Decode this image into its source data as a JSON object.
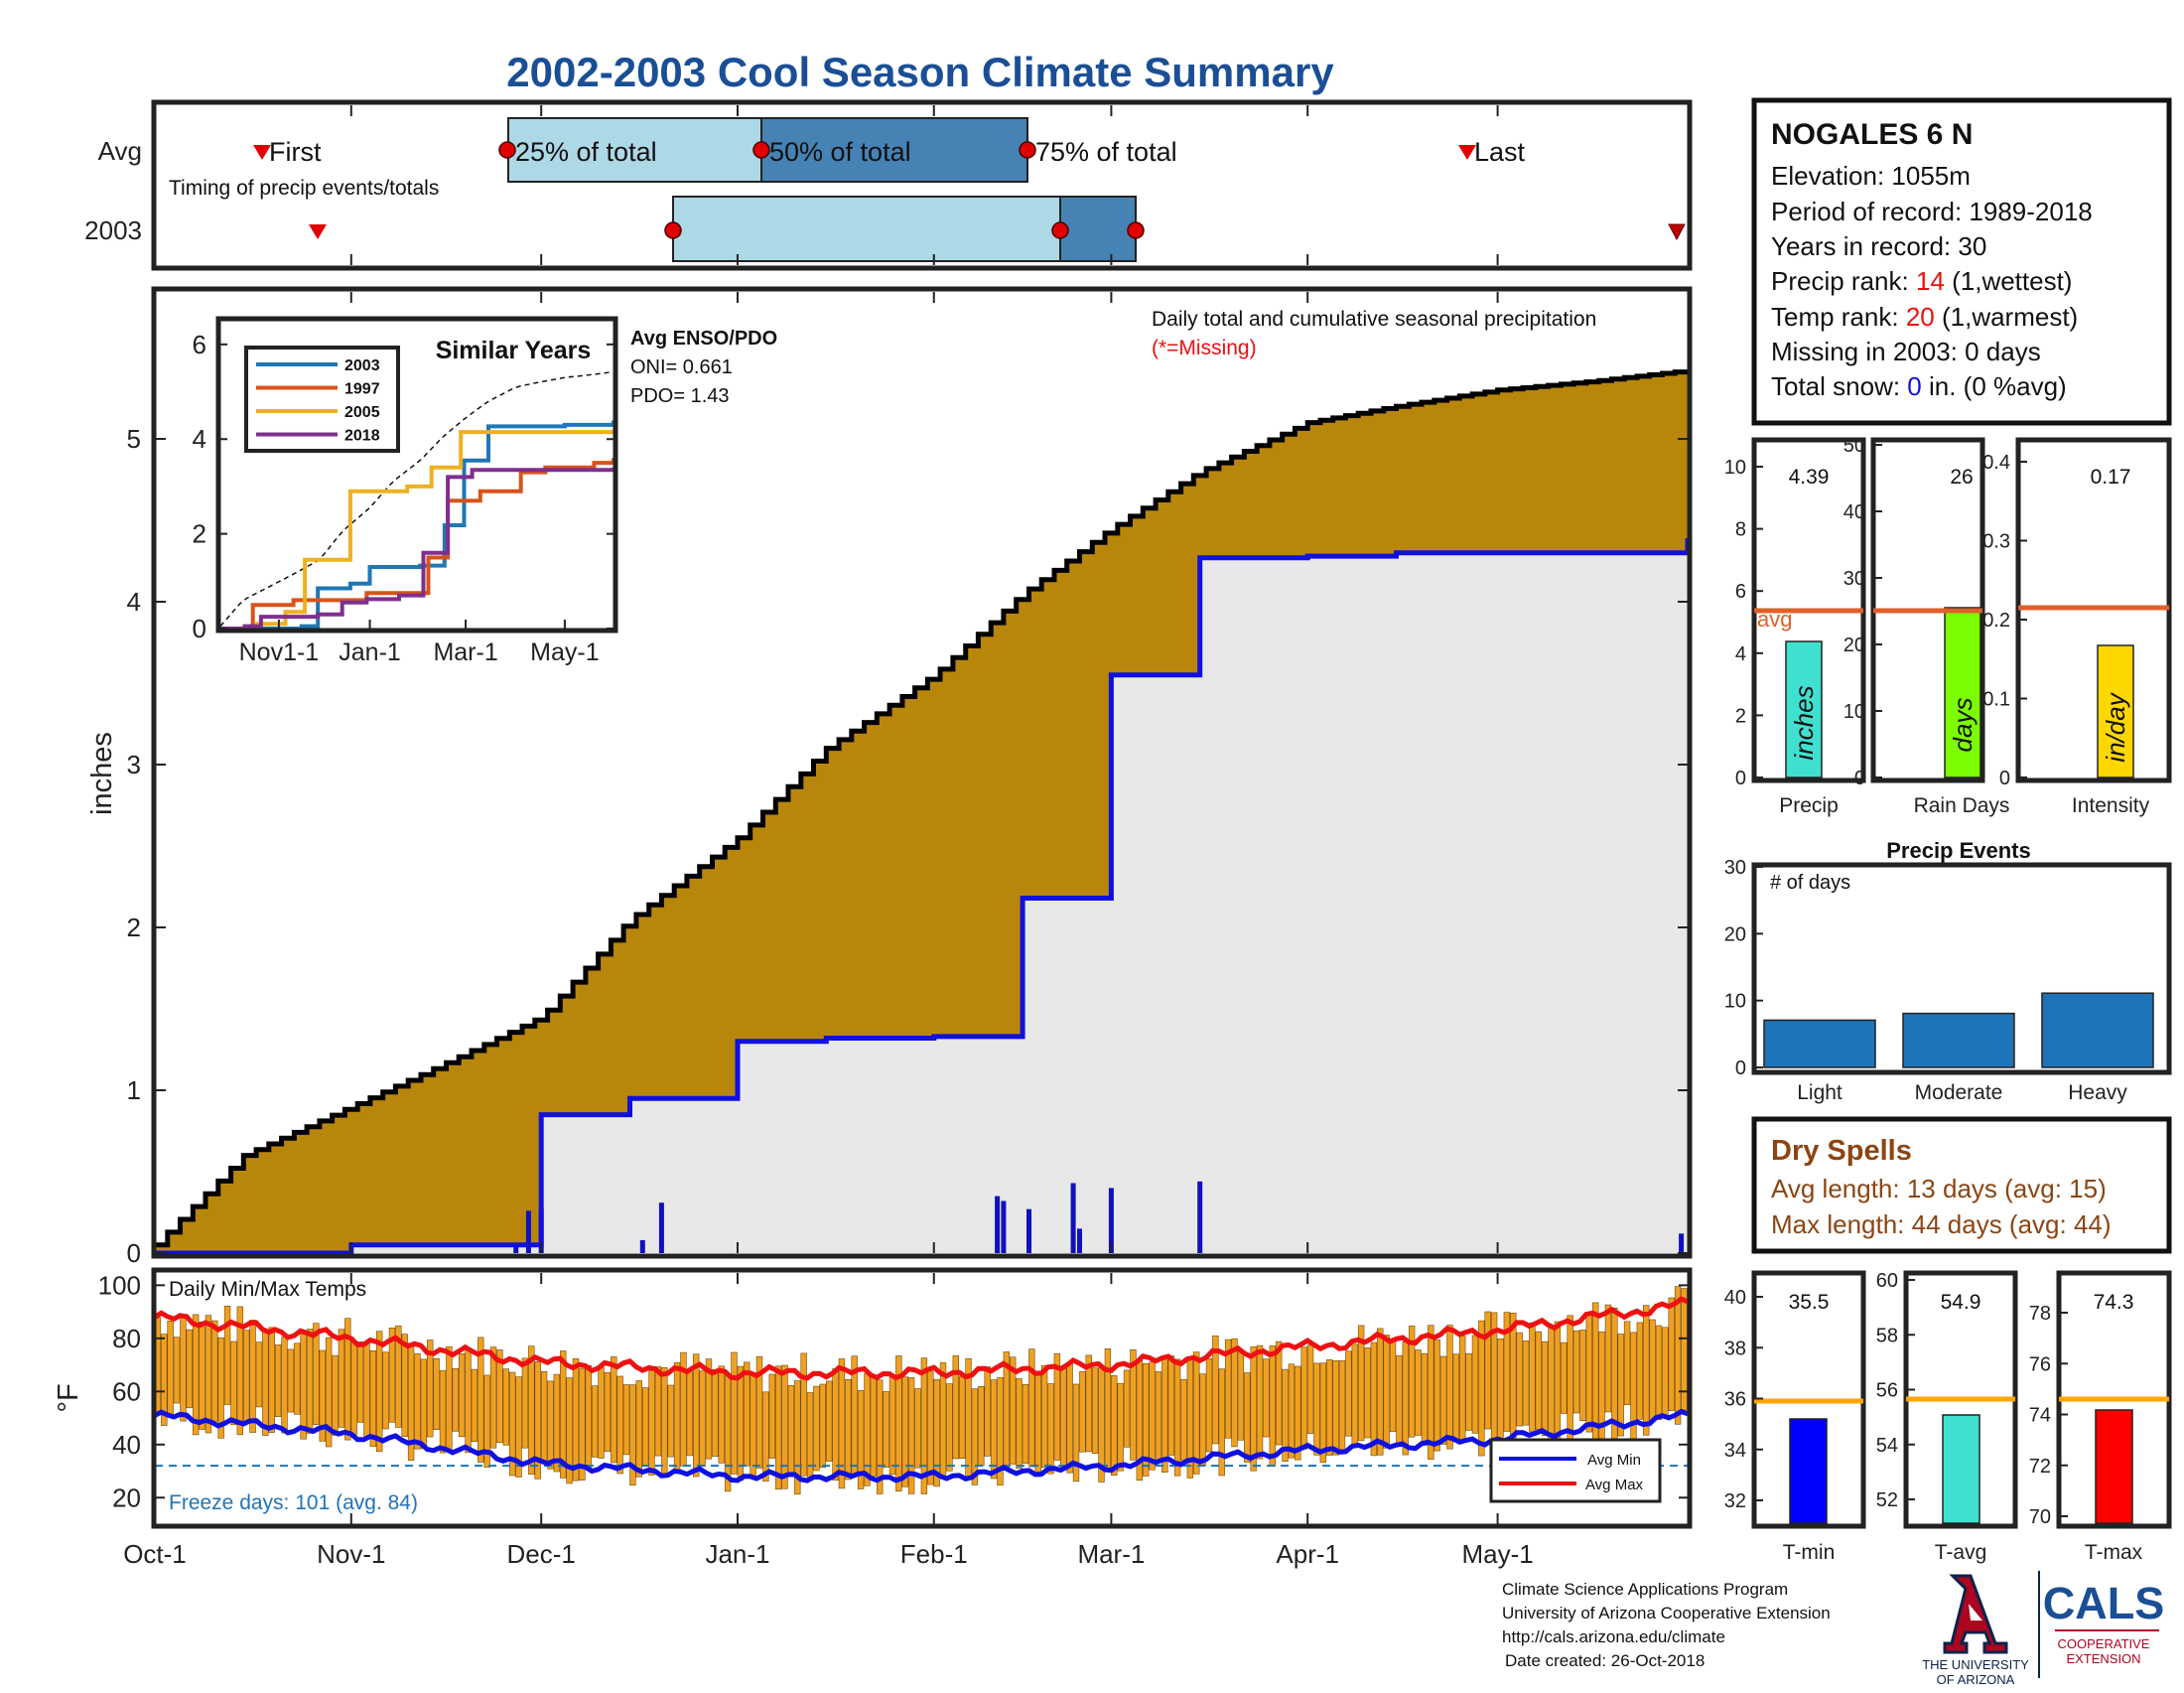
{
  "title": "2002-2003 Cool Season Climate Summary",
  "colors": {
    "title": "#1a4f96",
    "brown": "#b8860b",
    "blue_line": "#1010e0",
    "gray_fill": "#e8e8e8",
    "orange_bar": "#f0a020",
    "red": "#e81010",
    "avg_line_orange": "#e0602a",
    "precip_bar": "#40e0d0",
    "raindays_bar": "#7cfc00",
    "intensity_bar": "#ffd700",
    "events_bar": "#1f73b8",
    "dry_text": "#8b4513",
    "tmin_bar": "#0000ff",
    "tavg_bar": "#40e0d0",
    "tmax_bar": "#ff0000",
    "temp_avg_line": "#ffa500",
    "light_box": "#add8e6",
    "dark_box": "#4682b4"
  },
  "station": {
    "name": "NOGALES 6 N",
    "elevation": "Elevation: 1055m",
    "period": "Period of record: 1989-2018",
    "years": "Years in record: 30",
    "precip_rank_prefix": "Precip rank: ",
    "precip_rank_value": "14",
    "precip_rank_suffix": " (1,wettest)",
    "temp_rank_prefix": "Temp rank: ",
    "temp_rank_value": "20",
    "temp_rank_suffix": " (1,warmest)",
    "missing": "Missing in 2003: 0 days",
    "snow_prefix": "Total snow: ",
    "snow_value": "0",
    "snow_suffix": " in. (0 %avg)"
  },
  "timing": {
    "row_labels": [
      "Avg",
      "2003"
    ],
    "subtitle": "Timing of precip events/totals",
    "labels": [
      "First",
      "25% of total",
      "50% of total",
      "75% of total",
      "Last"
    ],
    "avg": {
      "first": "Oct-27",
      "p25": "Nov-27",
      "p50": "Dec-27",
      "p75": "Jan-27",
      "last": "Apr-21"
    },
    "y2003": {
      "first": "Nov-03",
      "p25": "Dec-20",
      "p50": "Feb-16",
      "p75": "Mar-03",
      "last": "May-31"
    }
  },
  "main": {
    "ylabel": "inches",
    "note": "Daily total and cumulative seasonal precipitation",
    "missing_note": "(*=Missing)",
    "yticks": [
      "0",
      "1",
      "2",
      "3",
      "4",
      "5"
    ],
    "xticks": [
      "Oct-1",
      "Nov-1",
      "Dec-1",
      "Jan-1",
      "Feb-1",
      "Mar-1",
      "Apr-1",
      "May-1"
    ]
  },
  "inset": {
    "title": "Similar Years",
    "enso_title": "Avg ENSO/PDO",
    "oni": "ONI= 0.661",
    "pdo": "PDO= 1.43",
    "yticks": [
      "0",
      "2",
      "4",
      "6"
    ],
    "xticks": [
      "Nov1-1",
      "Jan-1",
      "Mar-1",
      "May-1"
    ],
    "legend": [
      {
        "name": "2003",
        "color": "#1f77b4"
      },
      {
        "name": "1997",
        "color": "#d95319"
      },
      {
        "name": "2005",
        "color": "#edb120"
      },
      {
        "name": "2018",
        "color": "#7e2f8e"
      }
    ]
  },
  "temps": {
    "label": "Daily Min/Max Temps",
    "ylabel": "°F",
    "yticks": [
      "20",
      "40",
      "60",
      "80",
      "100"
    ],
    "freeze": "Freeze days: 101 (avg. 84)",
    "legend_min": "Avg Min",
    "legend_max": "Avg Max"
  },
  "mini": {
    "precip": {
      "label": "Precip",
      "value": "4.39",
      "unit": "inches",
      "avg_label": "avg",
      "yticks": [
        "0",
        "2",
        "4",
        "6",
        "8",
        "10"
      ]
    },
    "raindays": {
      "label": "Rain Days",
      "value": "26",
      "unit": "days",
      "yticks": [
        "0",
        "10",
        "20",
        "30",
        "40",
        "50"
      ]
    },
    "intensity": {
      "label": "Intensity",
      "value": "0.17",
      "unit": "in/day",
      "yticks": [
        "0",
        "0.1",
        "0.2",
        "0.3",
        "0.4"
      ]
    }
  },
  "events": {
    "title": "Precip Events",
    "label": "# of days",
    "yticks": [
      "0",
      "10",
      "20",
      "30"
    ],
    "categories": [
      "Light",
      "Moderate",
      "Heavy"
    ],
    "values": [
      7,
      8,
      11
    ]
  },
  "dry": {
    "title": "Dry Spells",
    "avg": "Avg length: 13 days (avg: 15)",
    "max": "Max length: 44 days (avg: 44)"
  },
  "tempbars": {
    "tmin": {
      "label": "T-min",
      "value": "35.5",
      "yticks": [
        "32",
        "34",
        "36",
        "38",
        "40"
      ]
    },
    "tavg": {
      "label": "T-avg",
      "value": "54.9",
      "yticks": [
        "52",
        "54",
        "56",
        "58",
        "60"
      ]
    },
    "tmax": {
      "label": "T-max",
      "value": "74.3",
      "yticks": [
        "70",
        "72",
        "74",
        "76",
        "78"
      ]
    }
  },
  "footer": {
    "line1": "Climate Science Applications Program",
    "line2": "University of Arizona Cooperative Extension",
    "line3": "http://cals.arizona.edu/climate",
    "line4": "Date created: 26-Oct-2018"
  },
  "logos": {
    "ua_line1": "THE UNIVERSITY",
    "ua_line2": "OF ARIZONA",
    "cals": "CALS",
    "coop1": "COOPERATIVE",
    "coop2": "EXTENSION"
  },
  "chart_data": {
    "type": "area",
    "title": "2002-2003 Cool Season Climate Summary",
    "ylabel": "inches",
    "ylim": [
      0,
      5.9
    ],
    "series": [
      {
        "name": "cumulative average precipitation",
        "x": [
          "Oct-1",
          "Oct-15",
          "Nov-1",
          "Nov-15",
          "Dec-1",
          "Dec-15",
          "Jan-1",
          "Jan-15",
          "Feb-1",
          "Feb-15",
          "Mar-1",
          "Mar-15",
          "Apr-1",
          "Apr-15",
          "May-1",
          "May-15",
          "May-31"
        ],
        "values": [
          0.05,
          0.6,
          0.9,
          1.15,
          1.45,
          2.05,
          2.55,
          3.1,
          3.55,
          4.05,
          4.45,
          4.8,
          5.1,
          5.2,
          5.3,
          5.35,
          5.42
        ]
      },
      {
        "name": "cumulative 2003 precipitation",
        "x": [
          "Oct-1",
          "Oct-15",
          "Nov-1",
          "Nov-15",
          "Dec-1",
          "Dec-15",
          "Jan-1",
          "Jan-15",
          "Feb-1",
          "Feb-15",
          "Mar-1",
          "Mar-15",
          "Apr-1",
          "Apr-15",
          "May-1",
          "May-15",
          "May-31"
        ],
        "values": [
          0,
          0,
          0.05,
          0.05,
          0.85,
          0.95,
          1.3,
          1.32,
          1.33,
          2.18,
          3.55,
          4.27,
          4.28,
          4.3,
          4.3,
          4.3,
          4.39
        ]
      }
    ],
    "daily_precip_2003": [
      {
        "x": "Nov-27",
        "value": 0.05
      },
      {
        "x": "Nov-29",
        "value": 0.26
      },
      {
        "x": "Dec-1",
        "value": 0.27
      },
      {
        "x": "Dec-17",
        "value": 0.08
      },
      {
        "x": "Dec-20",
        "value": 0.31
      },
      {
        "x": "Feb-11",
        "value": 0.35
      },
      {
        "x": "Feb-12",
        "value": 0.32
      },
      {
        "x": "Feb-16",
        "value": 0.27
      },
      {
        "x": "Feb-23",
        "value": 0.43
      },
      {
        "x": "Feb-24",
        "value": 0.15
      },
      {
        "x": "Mar-1",
        "value": 0.4
      },
      {
        "x": "Mar-15",
        "value": 0.44
      },
      {
        "x": "May-30",
        "value": 0.12
      }
    ],
    "temps": {
      "ylim": [
        10,
        105
      ],
      "avg_max": {
        "x": [
          "Oct-1",
          "Nov-1",
          "Dec-1",
          "Jan-1",
          "Feb-1",
          "Mar-1",
          "Apr-1",
          "May-1",
          "May-31"
        ],
        "values": [
          88,
          80,
          71,
          67,
          67,
          70,
          77,
          83,
          93
        ]
      },
      "avg_min": {
        "x": [
          "Oct-1",
          "Nov-1",
          "Dec-1",
          "Jan-1",
          "Feb-1",
          "Mar-1",
          "Apr-1",
          "May-1",
          "May-31"
        ],
        "values": [
          51,
          44,
          33,
          28,
          28,
          32,
          38,
          42,
          51
        ]
      },
      "freeze_line": 32
    }
  }
}
